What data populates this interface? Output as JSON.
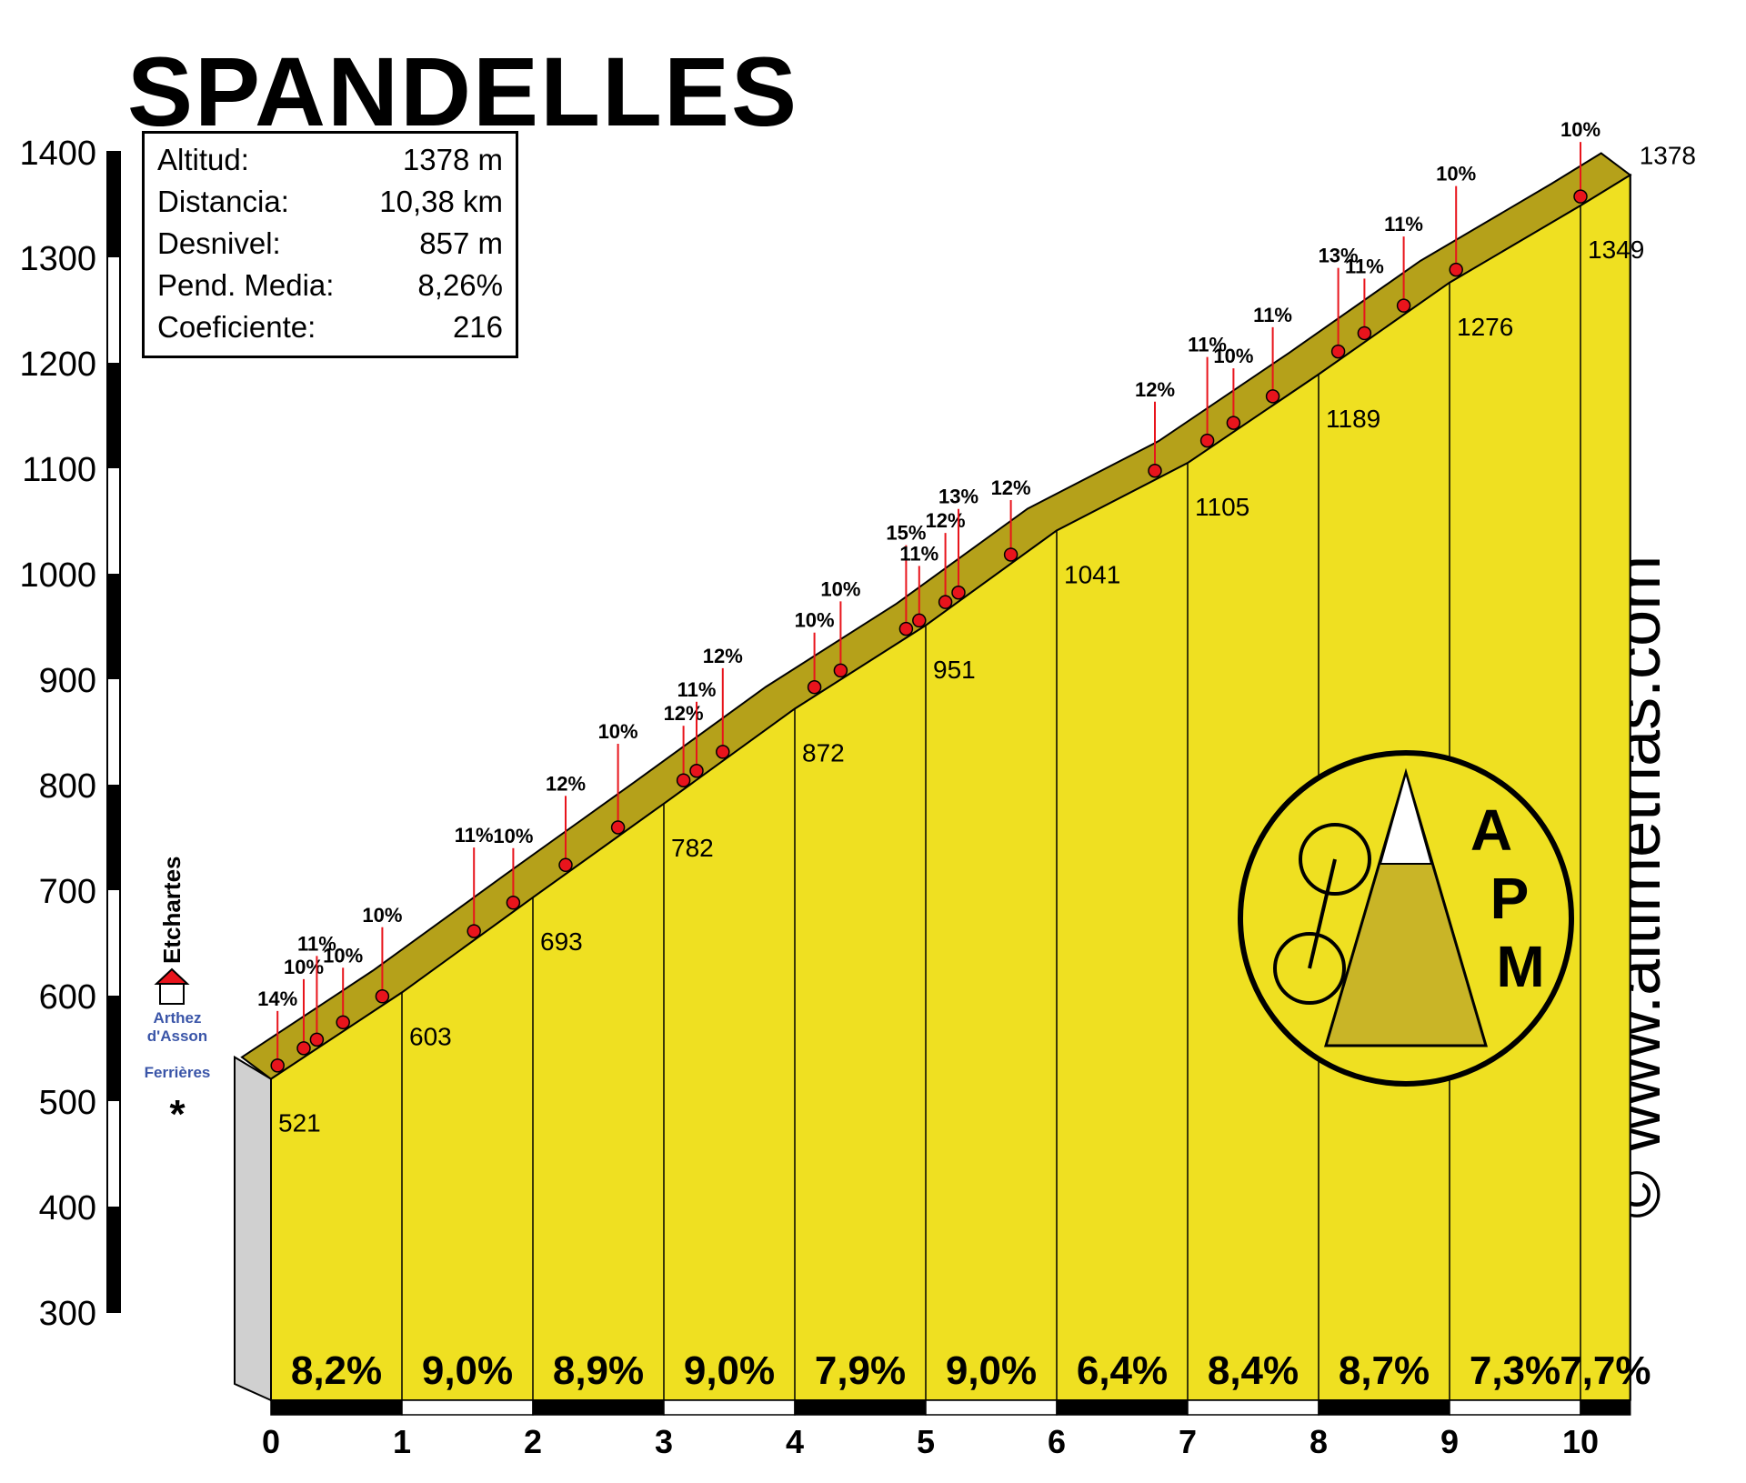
{
  "title": "SPANDELLES",
  "stats": [
    {
      "label": "Altitud:",
      "value": "1378 m"
    },
    {
      "label": "Distancia:",
      "value": "10,38 km"
    },
    {
      "label": "Desnivel:",
      "value": "857 m"
    },
    {
      "label": "Pend. Media:",
      "value": "8,26%"
    },
    {
      "label": "Coeficiente:",
      "value": "216"
    }
  ],
  "start_place": "Etchartes",
  "roads": {
    "left": "Arthez\nd'Asson",
    "right": "Ferrières"
  },
  "watermark": "© www.altimetrias.com",
  "logo_text": [
    "A",
    "P",
    "M"
  ],
  "colors": {
    "fill": "#efe021",
    "road": "#b5a11a",
    "marker": "#e8141c",
    "left_wall": "#d0d0d0"
  },
  "chart_data": {
    "type": "area",
    "title": "SPANDELLES",
    "xlabel": "",
    "ylabel": "",
    "xlim": [
      0,
      10.38
    ],
    "ylim": [
      300,
      1400
    ],
    "yticks": [
      300,
      400,
      500,
      600,
      700,
      800,
      900,
      1000,
      1100,
      1200,
      1300,
      1400
    ],
    "xticks": [
      0,
      1,
      2,
      3,
      4,
      5,
      6,
      7,
      8,
      9,
      10
    ],
    "profile": [
      {
        "km": 0,
        "alt": 521
      },
      {
        "km": 1,
        "alt": 603
      },
      {
        "km": 2,
        "alt": 693
      },
      {
        "km": 3,
        "alt": 782
      },
      {
        "km": 4,
        "alt": 872
      },
      {
        "km": 5,
        "alt": 951
      },
      {
        "km": 6,
        "alt": 1041
      },
      {
        "km": 7,
        "alt": 1105
      },
      {
        "km": 8,
        "alt": 1189
      },
      {
        "km": 9,
        "alt": 1276
      },
      {
        "km": 10,
        "alt": 1349
      },
      {
        "km": 10.38,
        "alt": 1378
      }
    ],
    "segment_gradients": [
      "8,2%",
      "9,0%",
      "8,9%",
      "9,0%",
      "7,9%",
      "9,0%",
      "6,4%",
      "8,4%",
      "8,7%",
      "7,3%",
      "7,7%"
    ],
    "altitude_labels": [
      "521",
      "603",
      "693",
      "782",
      "872",
      "951",
      "1041",
      "1105",
      "1189",
      "1276",
      "1349",
      "1378"
    ],
    "ramps": [
      {
        "km": 0.05,
        "label": "14%"
      },
      {
        "km": 0.25,
        "label": "10%"
      },
      {
        "km": 0.35,
        "label": "11%"
      },
      {
        "km": 0.55,
        "label": "10%"
      },
      {
        "km": 0.85,
        "label": "10%"
      },
      {
        "km": 1.55,
        "label": "11%"
      },
      {
        "km": 1.85,
        "label": "10%"
      },
      {
        "km": 2.25,
        "label": "12%"
      },
      {
        "km": 2.65,
        "label": "10%"
      },
      {
        "km": 3.15,
        "label": "12%"
      },
      {
        "km": 3.25,
        "label": "11%"
      },
      {
        "km": 3.45,
        "label": "12%"
      },
      {
        "km": 4.15,
        "label": "10%"
      },
      {
        "km": 4.35,
        "label": "10%"
      },
      {
        "km": 4.85,
        "label": "15%"
      },
      {
        "km": 4.95,
        "label": "11%"
      },
      {
        "km": 5.15,
        "label": "12%"
      },
      {
        "km": 5.25,
        "label": "13%"
      },
      {
        "km": 5.65,
        "label": "12%"
      },
      {
        "km": 6.75,
        "label": "12%"
      },
      {
        "km": 7.15,
        "label": "11%"
      },
      {
        "km": 7.35,
        "label": "10%"
      },
      {
        "km": 7.65,
        "label": "11%"
      },
      {
        "km": 8.15,
        "label": "13%"
      },
      {
        "km": 8.35,
        "label": "11%"
      },
      {
        "km": 8.65,
        "label": "11%"
      },
      {
        "km": 9.05,
        "label": "10%"
      },
      {
        "km": 10.0,
        "label": "10%"
      }
    ]
  }
}
